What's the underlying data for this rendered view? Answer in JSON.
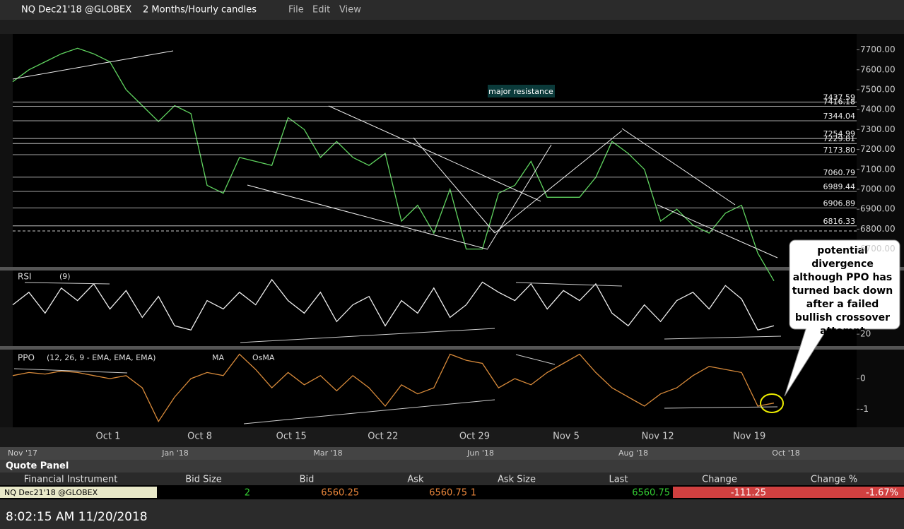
{
  "window": {
    "symbol": "NQ Dec21'18 @GLOBEX",
    "interval": "2 Months/Hourly candles",
    "menus": [
      "File",
      "Edit",
      "View"
    ]
  },
  "price_chart": {
    "type": "line",
    "values": [
      7540,
      7600,
      7640,
      7680,
      7708,
      7680,
      7640,
      7500,
      7420,
      7340,
      7420,
      7380,
      7020,
      6980,
      7160,
      7140,
      7120,
      7360,
      7300,
      7160,
      7240,
      7160,
      7120,
      7180,
      6840,
      6920,
      6780,
      7000,
      6700,
      6700,
      6980,
      7020,
      7140,
      6960,
      6960,
      6960,
      7060,
      7240,
      7180,
      7100,
      6840,
      6900,
      6820,
      6780,
      6880,
      6920,
      6680,
      6540
    ],
    "ylim": [
      6610,
      7780
    ],
    "yticks": [
      {
        "value": 7700,
        "label": "7700.00"
      },
      {
        "value": 7600,
        "label": "7600.00"
      },
      {
        "value": 7500,
        "label": "7500.00"
      },
      {
        "value": 7400,
        "label": "7400.00"
      },
      {
        "value": 7300,
        "label": "7300.00"
      },
      {
        "value": 7200,
        "label": "7200.00"
      },
      {
        "value": 7100,
        "label": "7100.00"
      },
      {
        "value": 7000,
        "label": "7000.00"
      },
      {
        "value": 6900,
        "label": "6900.00"
      },
      {
        "value": 6800,
        "label": "6800.00"
      },
      {
        "value": 6700,
        "label": "6700.00"
      }
    ],
    "levels": [
      {
        "value": 7437.59,
        "label": "7437.59"
      },
      {
        "value": 7416.18,
        "label": "7416.18"
      },
      {
        "value": 7344.04,
        "label": "7344.04"
      },
      {
        "value": 7254.99,
        "label": "7254.99"
      },
      {
        "value": 7229.81,
        "label": "7229.81"
      },
      {
        "value": 7173.8,
        "label": "7173.80"
      },
      {
        "value": 7060.79,
        "label": "7060.79"
      },
      {
        "value": 6989.44,
        "label": "6989.44"
      },
      {
        "value": 6906.89,
        "label": "6906.89"
      },
      {
        "value": 6816.33,
        "label": "6816.33"
      }
    ],
    "resistance_label": "major resistance",
    "annotation": "potential divergence although PPO has turned back down after a failed bullish crossover attempt"
  },
  "rsi": {
    "type": "line",
    "name": "RSI",
    "params": "(9)",
    "values": [
      55,
      70,
      45,
      75,
      60,
      80,
      50,
      72,
      40,
      65,
      30,
      25,
      60,
      50,
      70,
      55,
      85,
      60,
      45,
      70,
      35,
      55,
      65,
      30,
      60,
      45,
      75,
      40,
      55,
      82,
      70,
      60,
      80,
      50,
      72,
      60,
      80,
      45,
      30,
      55,
      35,
      60,
      70,
      50,
      78,
      62,
      25,
      30
    ],
    "ylim": [
      10,
      90
    ],
    "yticks": [
      20
    ]
  },
  "ppo": {
    "type": "line",
    "name": "PPO",
    "params": "(12, 26, 9 - EMA, EMA, EMA)",
    "legend": [
      "MA",
      "OsMA"
    ],
    "values": [
      0.1,
      0.2,
      0.15,
      0.25,
      0.2,
      0.1,
      0,
      0.1,
      -0.3,
      -1.4,
      -0.6,
      0,
      0.2,
      0.1,
      0.8,
      0.3,
      -0.3,
      0.2,
      -0.2,
      0.1,
      -0.4,
      0.1,
      -0.3,
      -0.9,
      -0.2,
      -0.5,
      -0.3,
      0.8,
      0.6,
      0.5,
      -0.3,
      0,
      -0.2,
      0.2,
      0.5,
      0.8,
      0.2,
      -0.3,
      -0.6,
      -0.9,
      -0.5,
      -0.3,
      0.1,
      0.4,
      0.3,
      0.2,
      -0.9,
      -0.8
    ],
    "ylim": [
      -1.5,
      0.95
    ],
    "yticks": [
      0,
      -1
    ]
  },
  "dates": [
    "Oct 1",
    "Oct 8",
    "Oct 15",
    "Oct 22",
    "Oct 29",
    "Nov 5",
    "Nov 12",
    "Nov 19"
  ],
  "timeline": [
    "Nov '17",
    "Jan '18",
    "Mar '18",
    "Jun '18",
    "Aug '18",
    "Oct '18"
  ],
  "quote_panel": {
    "title": "Quote Panel",
    "headers": [
      "Financial Instrument",
      "Bid Size",
      "Bid",
      "Ask",
      "Ask Size",
      "Last",
      "Change",
      "Change %"
    ],
    "row": {
      "instrument": "NQ Dec21'18 @GLOBEX",
      "bid_size": "2",
      "bid": "6560.25",
      "ask": "6560.75",
      "ask_size": "1",
      "last": "6560.75",
      "change": "-111.25",
      "change_pct": "-1.67%"
    }
  },
  "status": "8:02:15 AM 11/20/2018"
}
